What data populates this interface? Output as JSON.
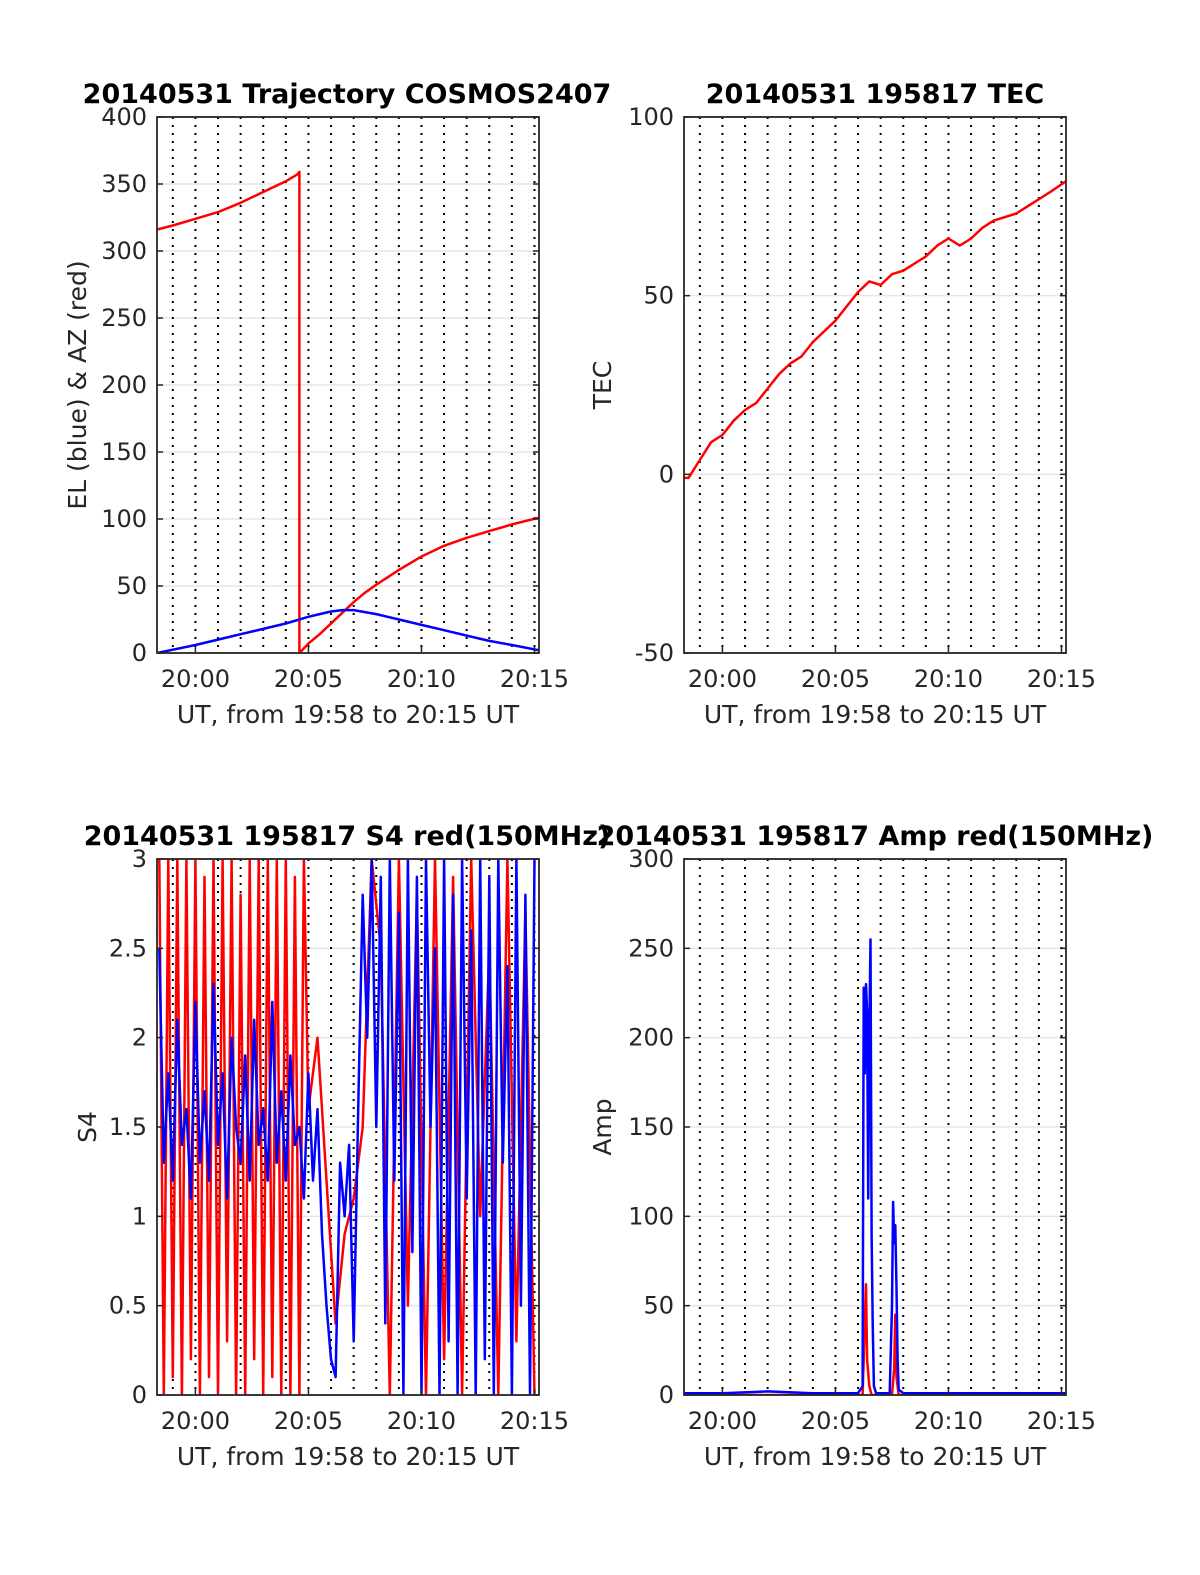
{
  "chart_data": [
    {
      "id": "trajectory",
      "type": "line",
      "title": "20140531 Trajectory COSMOS2407",
      "xlabel": "UT, from 19:58 to 20:15 UT",
      "ylabel": "EL (blue) & AZ (red)",
      "xlim": [
        -1.7,
        15.2
      ],
      "ylim": [
        0,
        400
      ],
      "xticks": [
        {
          "v": 0,
          "label": "20:00"
        },
        {
          "v": 5,
          "label": "20:05"
        },
        {
          "v": 10,
          "label": "20:10"
        },
        {
          "v": 15,
          "label": "20:15"
        }
      ],
      "yticks": [
        {
          "v": 0,
          "label": "0"
        },
        {
          "v": 50,
          "label": "50"
        },
        {
          "v": 100,
          "label": "100"
        },
        {
          "v": 150,
          "label": "150"
        },
        {
          "v": 200,
          "label": "200"
        },
        {
          "v": 250,
          "label": "250"
        },
        {
          "v": 300,
          "label": "300"
        },
        {
          "v": 350,
          "label": "350"
        },
        {
          "v": 400,
          "label": "400"
        }
      ],
      "grid": "horizontal solid, vertical dotted",
      "series": [
        {
          "color": "#ff0000",
          "x": [
            -1.7,
            -1.0,
            0.0,
            1.0,
            2.0,
            3.0,
            4.0,
            4.5,
            4.6,
            4.6,
            5.0,
            5.5,
            6.0,
            6.5,
            7.0,
            7.5,
            8.0,
            9.0,
            10.0,
            11.0,
            12.0,
            13.0,
            14.0,
            15.2
          ],
          "y": [
            316,
            319,
            324,
            329,
            336,
            344,
            352,
            357,
            359,
            0,
            7,
            14,
            22,
            30,
            38,
            45,
            51,
            62,
            72,
            80,
            86,
            91,
            96,
            101
          ]
        },
        {
          "color": "#0000ff",
          "x": [
            -1.7,
            0.0,
            1.0,
            2.0,
            3.0,
            4.0,
            5.0,
            5.5,
            6.0,
            6.5,
            7.0,
            8.0,
            9.0,
            10.0,
            11.0,
            12.0,
            13.0,
            14.0,
            15.2
          ],
          "y": [
            0,
            6,
            10,
            14,
            18,
            22,
            27,
            29,
            31,
            32,
            32,
            29,
            25,
            21,
            17,
            13,
            9,
            6,
            2
          ]
        }
      ]
    },
    {
      "id": "tec",
      "type": "line",
      "title": "20140531 195817 TEC",
      "xlabel": "UT, from 19:58 to 20:15 UT",
      "ylabel": "TEC",
      "xlim": [
        -1.7,
        15.2
      ],
      "ylim": [
        -50,
        100
      ],
      "xticks": [
        {
          "v": 0,
          "label": "20:00"
        },
        {
          "v": 5,
          "label": "20:05"
        },
        {
          "v": 10,
          "label": "20:10"
        },
        {
          "v": 15,
          "label": "20:15"
        }
      ],
      "yticks": [
        {
          "v": -50,
          "label": "-50"
        },
        {
          "v": 0,
          "label": "0"
        },
        {
          "v": 50,
          "label": "50"
        },
        {
          "v": 100,
          "label": "100"
        }
      ],
      "grid": "horizontal solid, vertical dotted",
      "series": [
        {
          "color": "#ff0000",
          "x": [
            -1.7,
            -1.5,
            -1.0,
            -0.5,
            0.0,
            0.5,
            1.0,
            1.5,
            2.0,
            2.5,
            3.0,
            3.5,
            4.0,
            4.5,
            5.0,
            5.5,
            6.0,
            6.5,
            7.0,
            7.5,
            8.0,
            8.5,
            9.0,
            9.5,
            10.0,
            10.5,
            11.0,
            11.5,
            12.0,
            12.5,
            13.0,
            13.5,
            14.0,
            14.5,
            15.2
          ],
          "y": [
            -1,
            -1,
            4,
            9,
            11,
            15,
            18,
            20,
            24,
            28,
            31,
            33,
            37,
            40,
            43,
            47,
            51,
            54,
            53,
            56,
            57,
            59,
            61,
            64,
            66,
            64,
            66,
            69,
            71,
            72,
            73,
            75,
            77,
            79,
            82
          ]
        }
      ]
    },
    {
      "id": "s4",
      "type": "line",
      "title": "20140531 195817 S4 red(150MHz)",
      "xlabel": "UT, from 19:58 to 20:15 UT",
      "ylabel": "S4",
      "xlim": [
        -1.7,
        15.2
      ],
      "ylim": [
        0,
        3
      ],
      "xticks": [
        {
          "v": 0,
          "label": "20:00"
        },
        {
          "v": 5,
          "label": "20:05"
        },
        {
          "v": 10,
          "label": "20:10"
        },
        {
          "v": 15,
          "label": "20:15"
        }
      ],
      "yticks": [
        {
          "v": 0,
          "label": "0"
        },
        {
          "v": 0.5,
          "label": "0.5"
        },
        {
          "v": 1,
          "label": "1"
        },
        {
          "v": 1.5,
          "label": "1.5"
        },
        {
          "v": 2,
          "label": "2"
        },
        {
          "v": 2.5,
          "label": "2.5"
        },
        {
          "v": 3,
          "label": "3"
        }
      ],
      "grid": "horizontal solid, vertical dotted",
      "series": [
        {
          "color": "#ff0000",
          "x": [
            -1.6,
            -1.4,
            -1.2,
            -1.0,
            -0.8,
            -0.6,
            -0.4,
            -0.2,
            0.0,
            0.2,
            0.4,
            0.6,
            0.8,
            1.0,
            1.2,
            1.4,
            1.6,
            1.8,
            2.0,
            2.2,
            2.4,
            2.6,
            2.8,
            3.0,
            3.2,
            3.4,
            3.6,
            3.8,
            4.0,
            4.2,
            4.4,
            4.6,
            4.8,
            5.0,
            5.4,
            5.8,
            6.2,
            6.6,
            7.0,
            7.4,
            7.8,
            8.2,
            8.6,
            9.0,
            9.4,
            9.8,
            10.2,
            10.6,
            11.0,
            11.4,
            11.8,
            12.2,
            12.6,
            13.0,
            13.4,
            13.8,
            14.2,
            14.6,
            15.0
          ],
          "y": [
            3,
            0,
            3,
            0.1,
            3,
            0,
            3,
            0.2,
            3,
            0,
            2.9,
            0.1,
            3,
            0,
            3,
            0.3,
            3,
            0,
            2.8,
            0,
            3,
            0.2,
            3,
            0,
            3,
            0.1,
            3,
            0,
            3,
            0,
            2.9,
            0,
            3,
            1.6,
            2.0,
            1.2,
            0.4,
            0.9,
            1.1,
            1.5,
            3,
            2.5,
            0,
            3,
            0.5,
            2.8,
            0,
            3,
            0.2,
            2.9,
            0,
            3,
            1.0,
            2.5,
            0,
            3,
            0.3,
            2.7,
            0
          ]
        },
        {
          "color": "#0000ff",
          "x": [
            -1.6,
            -1.4,
            -1.2,
            -1.0,
            -0.8,
            -0.6,
            -0.4,
            -0.2,
            0.0,
            0.2,
            0.4,
            0.6,
            0.8,
            1.0,
            1.2,
            1.4,
            1.6,
            1.8,
            2.0,
            2.2,
            2.4,
            2.6,
            2.8,
            3.0,
            3.2,
            3.4,
            3.6,
            3.8,
            4.0,
            4.2,
            4.4,
            4.6,
            4.8,
            5.0,
            5.2,
            5.4,
            5.6,
            5.8,
            6.0,
            6.2,
            6.4,
            6.6,
            6.8,
            7.0,
            7.2,
            7.4,
            7.6,
            7.8,
            8.0,
            8.2,
            8.4,
            8.6,
            8.8,
            9.0,
            9.2,
            9.4,
            9.6,
            9.8,
            10.0,
            10.2,
            10.4,
            10.6,
            10.8,
            11.0,
            11.2,
            11.4,
            11.6,
            11.8,
            12.0,
            12.2,
            12.4,
            12.6,
            12.8,
            13.0,
            13.2,
            13.4,
            13.6,
            13.8,
            14.0,
            14.2,
            14.4,
            14.6,
            14.8,
            15.0
          ],
          "y": [
            2.5,
            1.3,
            1.8,
            1.2,
            2.1,
            1.4,
            1.6,
            1.1,
            2.2,
            1.3,
            1.7,
            1.2,
            2.3,
            1.4,
            1.8,
            1.1,
            2.0,
            1.5,
            1.3,
            1.9,
            1.2,
            2.1,
            1.4,
            1.6,
            1.2,
            2.2,
            1.3,
            1.7,
            1.2,
            1.9,
            1.4,
            1.5,
            1.1,
            1.8,
            1.2,
            1.6,
            0.9,
            0.5,
            0.2,
            0.1,
            1.3,
            1.0,
            1.4,
            0.3,
            1.6,
            2.8,
            2.0,
            3,
            1.5,
            2.9,
            0.4,
            3,
            1.2,
            2.7,
            0,
            3,
            0.8,
            2.9,
            0,
            3,
            1.5,
            2.5,
            0,
            3,
            0.3,
            2.8,
            0,
            3,
            1.1,
            2.6,
            0,
            3,
            0.2,
            2.9,
            0,
            3,
            1.3,
            2.4,
            0,
            3,
            0.5,
            2.8,
            0,
            3
          ]
        }
      ]
    },
    {
      "id": "amp",
      "type": "line",
      "title": "20140531 195817 Amp red(150MHz)",
      "xlabel": "UT, from 19:58 to 20:15 UT",
      "ylabel": "Amp",
      "xlim": [
        -1.7,
        15.2
      ],
      "ylim": [
        0,
        300
      ],
      "xticks": [
        {
          "v": 0,
          "label": "20:00"
        },
        {
          "v": 5,
          "label": "20:05"
        },
        {
          "v": 10,
          "label": "20:10"
        },
        {
          "v": 15,
          "label": "20:15"
        }
      ],
      "yticks": [
        {
          "v": 0,
          "label": "0"
        },
        {
          "v": 50,
          "label": "50"
        },
        {
          "v": 100,
          "label": "100"
        },
        {
          "v": 150,
          "label": "150"
        },
        {
          "v": 200,
          "label": "200"
        },
        {
          "v": 250,
          "label": "250"
        },
        {
          "v": 300,
          "label": "300"
        }
      ],
      "grid": "horizontal solid, vertical dotted",
      "series": [
        {
          "color": "#ff0000",
          "x": [
            -1.7,
            6.2,
            6.3,
            6.35,
            6.4,
            6.5,
            6.6,
            7.5,
            7.6,
            7.65,
            7.7,
            7.8,
            15.2
          ],
          "y": [
            0,
            0,
            40,
            62,
            20,
            5,
            0,
            0,
            15,
            45,
            10,
            0,
            0
          ]
        },
        {
          "color": "#0000ff",
          "x": [
            -1.7,
            0.0,
            2.0,
            4.0,
            6.0,
            6.2,
            6.25,
            6.3,
            6.35,
            6.4,
            6.45,
            6.5,
            6.55,
            6.6,
            6.65,
            6.7,
            6.8,
            7.0,
            7.4,
            7.5,
            7.55,
            7.6,
            7.65,
            7.7,
            7.75,
            7.8,
            8.0,
            10.0,
            12.0,
            14.0,
            15.2
          ],
          "y": [
            1,
            1,
            2,
            1,
            1,
            5,
            228,
            180,
            230,
            215,
            110,
            200,
            255,
            90,
            40,
            5,
            1,
            1,
            1,
            50,
            108,
            85,
            95,
            60,
            20,
            3,
            1,
            1,
            1,
            1,
            1
          ]
        }
      ]
    }
  ]
}
